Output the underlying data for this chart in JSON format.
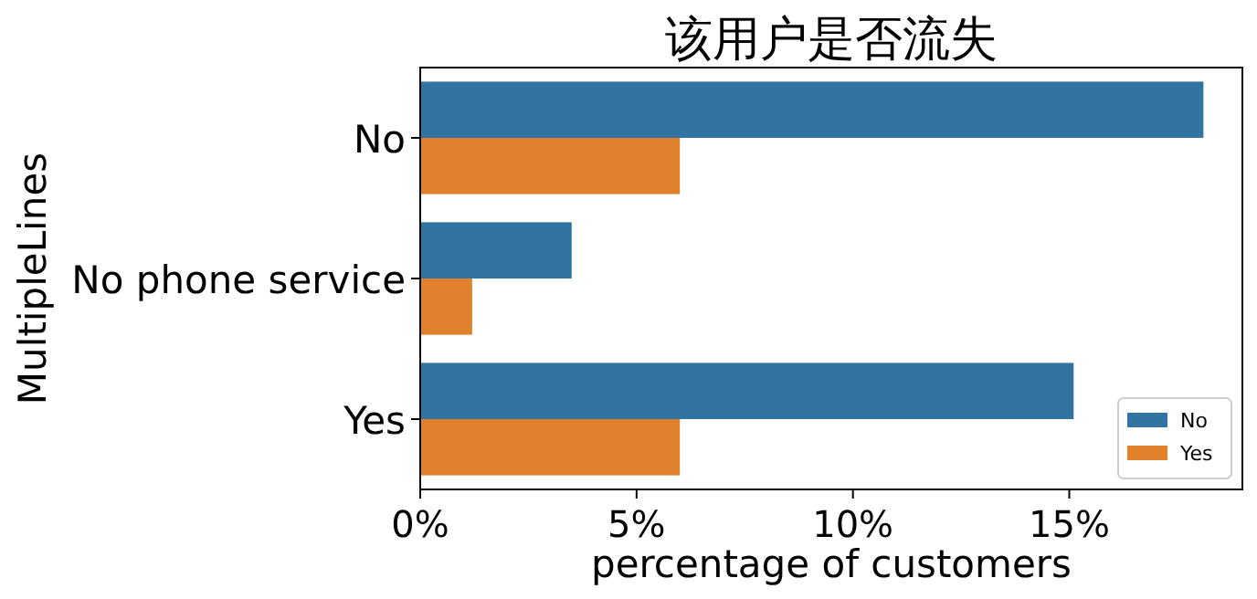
{
  "chart_data": {
    "type": "bar",
    "orientation": "horizontal",
    "title": "该用户是否流失",
    "xlabel": "percentage of customers",
    "ylabel": "MultipleLines",
    "categories": [
      "No",
      "No phone service",
      "Yes"
    ],
    "series": [
      {
        "name": "No",
        "color": "#3274a1",
        "values": [
          18.1,
          3.5,
          15.1
        ]
      },
      {
        "name": "Yes",
        "color": "#e1812c",
        "values": [
          6.0,
          1.2,
          6.0
        ]
      }
    ],
    "xlim": [
      0,
      19
    ],
    "xticks": [
      {
        "value": 0,
        "label": "0%"
      },
      {
        "value": 5,
        "label": "5%"
      },
      {
        "value": 10,
        "label": "10%"
      },
      {
        "value": 15,
        "label": "15%"
      }
    ],
    "legend": "bottom right",
    "grid": false
  }
}
